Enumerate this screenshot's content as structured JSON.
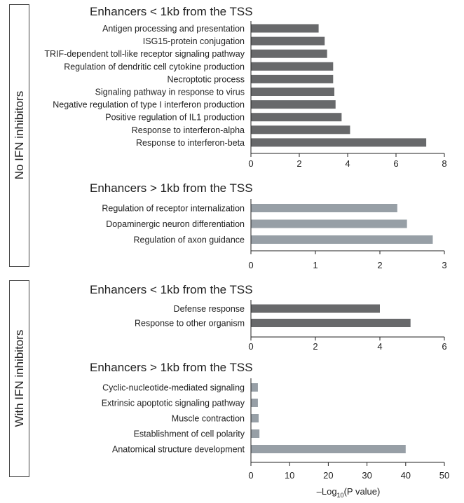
{
  "groups": [
    {
      "label": "No IFN inhibitors"
    },
    {
      "label": "With IFN inhibitors"
    }
  ],
  "colors": {
    "dark_bar": "#68696b",
    "light_bar": "#979fa6"
  },
  "xlabel": {
    "prefix": "–Log",
    "sub": "10",
    "suffix": "(P value)"
  },
  "chart_data": [
    {
      "type": "bar",
      "orientation": "horizontal",
      "group": "No IFN inhibitors",
      "title": "Enhancers < 1kb from the TSS",
      "categories": [
        "Antigen processing and presentation",
        "ISG15-protein conjugation",
        "TRIF-dependent toll-like receptor signaling pathway",
        "Regulation of dendritic cell cytokine production",
        "Necroptotic process",
        "Signaling pathway in response to virus",
        "Negative regulation of type I interferon production",
        "Positive regulation of IL1 production",
        "Response to interferon-alpha",
        "Response to interferon-beta"
      ],
      "values": [
        2.8,
        3.05,
        3.15,
        3.4,
        3.4,
        3.45,
        3.5,
        3.75,
        4.1,
        7.25
      ],
      "xlim": [
        0,
        8
      ],
      "xticks": [
        0,
        2,
        4,
        6,
        8
      ],
      "color": "dark"
    },
    {
      "type": "bar",
      "orientation": "horizontal",
      "group": "No IFN inhibitors",
      "title": "Enhancers > 1kb from the TSS",
      "categories": [
        "Regulation of receptor internalization",
        "Dopaminergic neuron differentiation",
        "Regulation of axon guidance"
      ],
      "values": [
        2.27,
        2.42,
        2.82
      ],
      "xlim": [
        0,
        3
      ],
      "xticks": [
        0,
        1,
        2,
        3
      ],
      "color": "light"
    },
    {
      "type": "bar",
      "orientation": "horizontal",
      "group": "With IFN inhibitors",
      "title": "Enhancers < 1kb from the TSS",
      "categories": [
        "Defense response",
        "Response to other organism"
      ],
      "values": [
        4.0,
        4.95
      ],
      "xlim": [
        0,
        6
      ],
      "xticks": [
        0,
        2,
        4,
        6
      ],
      "color": "dark"
    },
    {
      "type": "bar",
      "orientation": "horizontal",
      "group": "With IFN inhibitors",
      "title": "Enhancers > 1kb from the TSS",
      "categories": [
        "Cyclic-nucleotide-mediated signaling",
        "Extrinsic apoptotic signaling pathway",
        "Muscle contraction",
        "Establishment of cell polarity",
        "Anatomical structure development"
      ],
      "values": [
        1.8,
        1.8,
        2.0,
        2.2,
        40.0
      ],
      "xlim": [
        0,
        50
      ],
      "xticks": [
        0,
        10,
        20,
        30,
        40,
        50
      ],
      "color": "light"
    }
  ]
}
